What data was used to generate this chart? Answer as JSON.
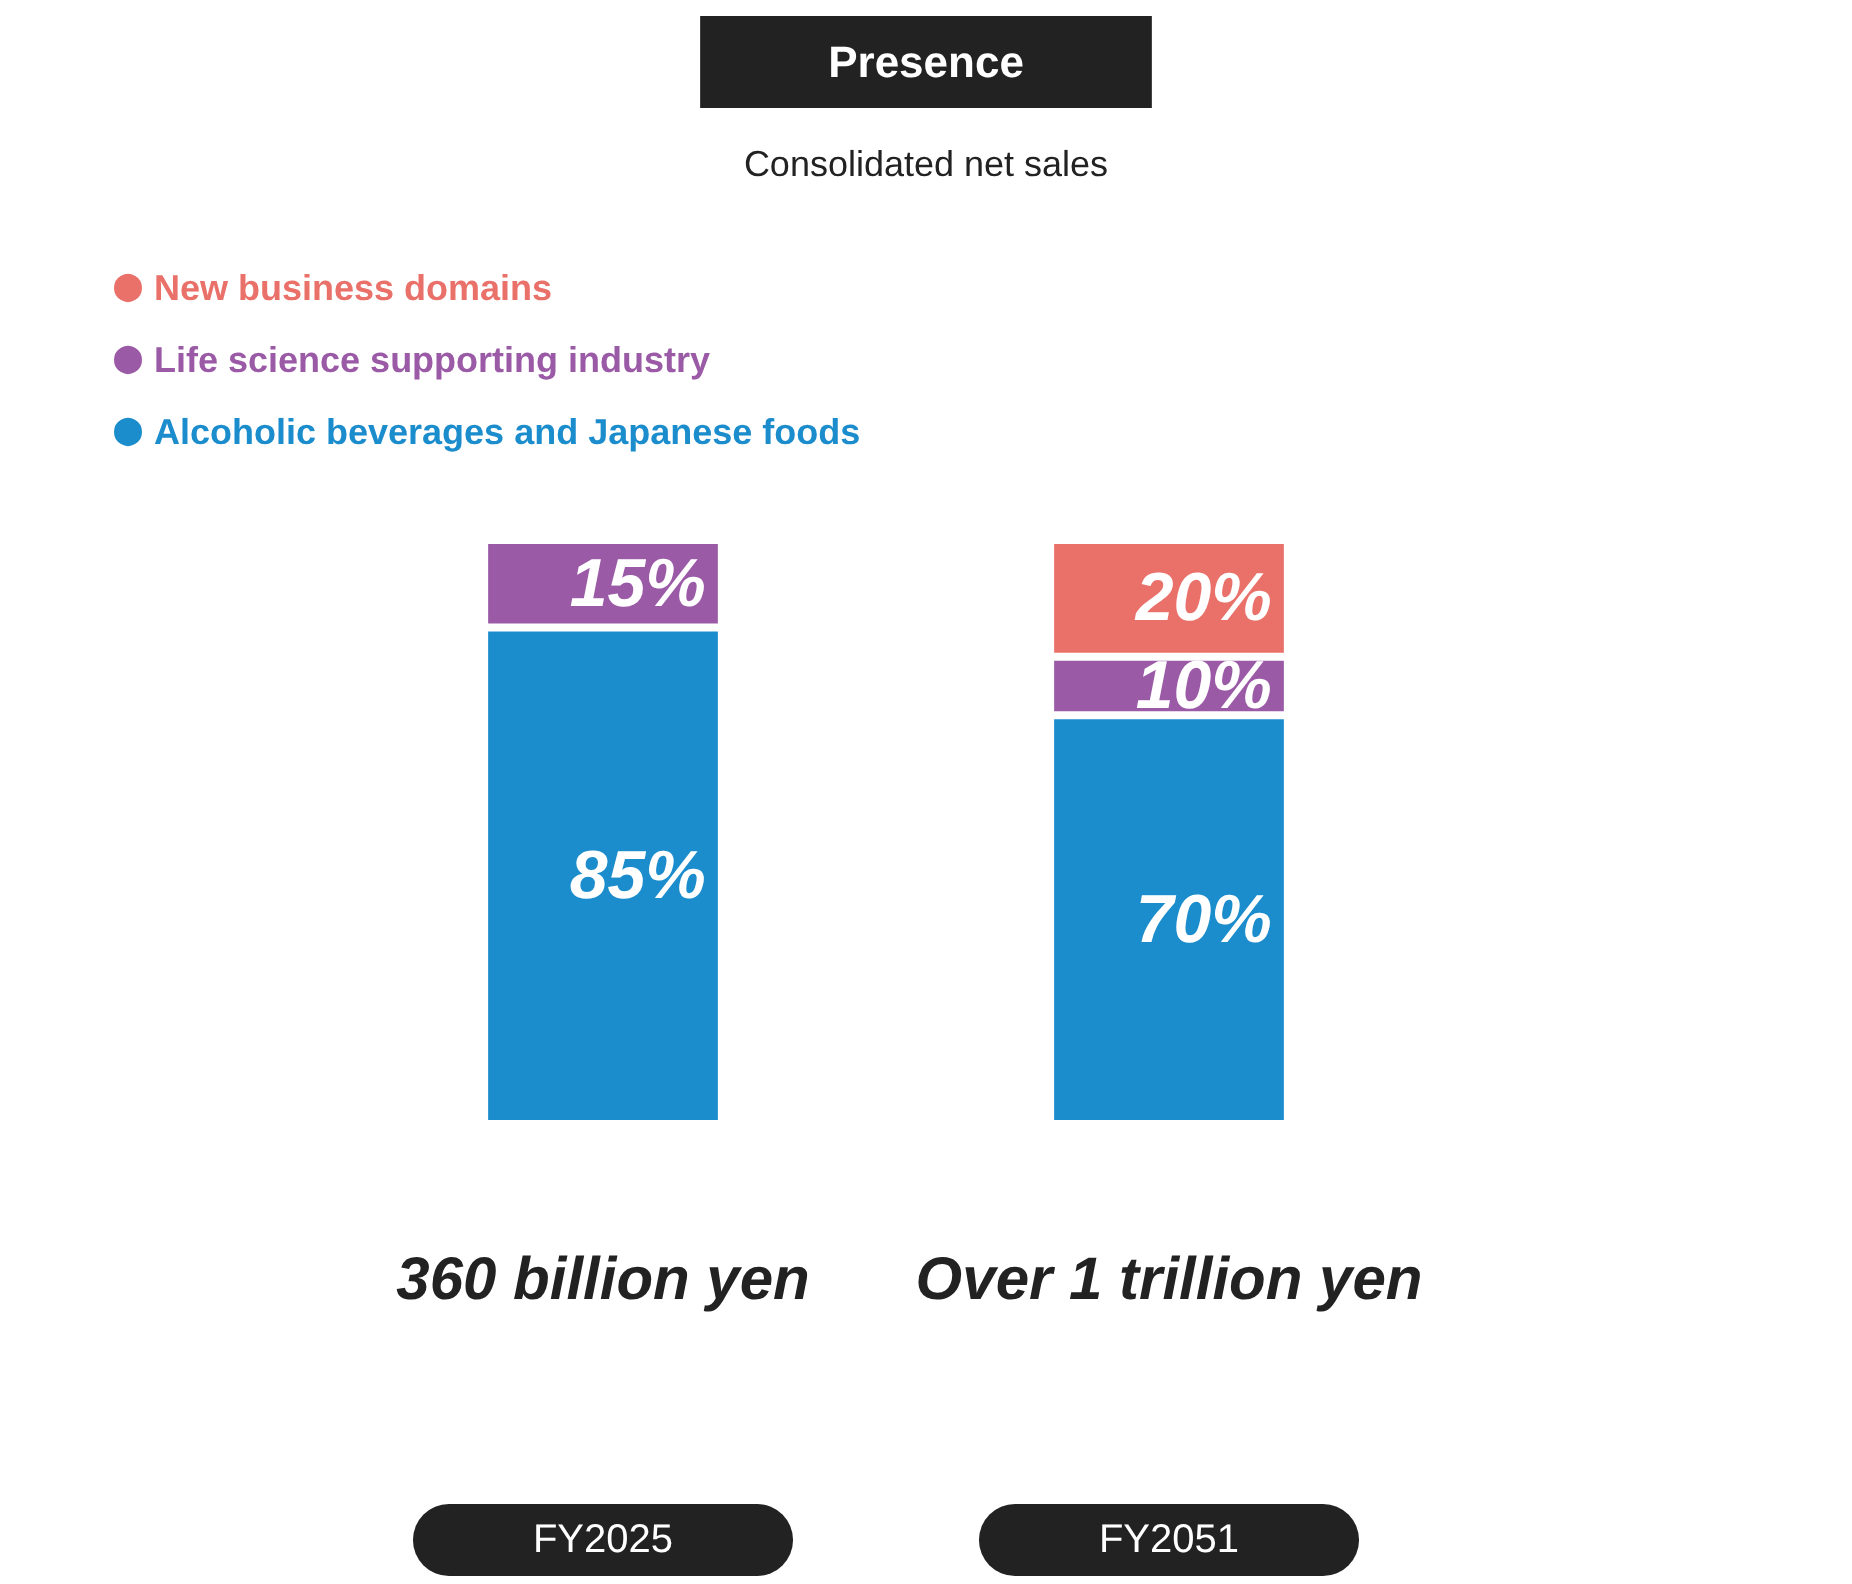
{
  "chart_data": {
    "type": "bar",
    "title": "Presence",
    "subtitle": "Consolidated net sales",
    "stacked": true,
    "legend": "top left",
    "tick_labels": "x",
    "categories": [
      "FY2025",
      "FY2051"
    ],
    "series": [
      {
        "name": "Alcoholic beverages and Japanese foods",
        "color": "#1b8ccc",
        "values": [
          85,
          70
        ],
        "value_labels": [
          "85%",
          "70%"
        ]
      },
      {
        "name": "Life science supporting industry",
        "color": "#9a5aa6",
        "values": [
          15,
          10
        ],
        "value_labels": [
          "15%",
          "10%"
        ]
      },
      {
        "name": "New business domains",
        "color": "#e9716a",
        "values": [
          null,
          20
        ],
        "value_labels": [
          null,
          "20%"
        ]
      }
    ],
    "annotations": [
      "360 billion yen",
      "Over 1 trillion yen"
    ]
  }
}
